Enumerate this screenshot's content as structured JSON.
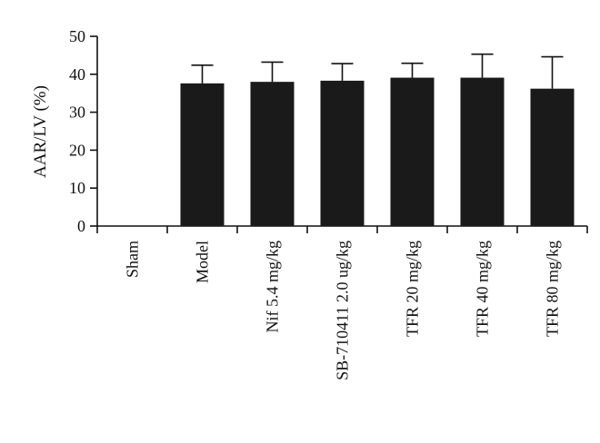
{
  "chart_data": {
    "type": "bar",
    "title": "",
    "xlabel": "",
    "ylabel": "AAR/LV (%)",
    "ylim": [
      0,
      50
    ],
    "yticks": [
      0,
      10,
      20,
      30,
      40,
      50
    ],
    "grid": false,
    "legend": "none",
    "categories": [
      "Sham",
      "Model",
      "Nif 5.4 mg/kg",
      "SB-710411 2.0 ug/kg",
      "TFR 20 mg/kg",
      "TFR 40 mg/kg",
      "TFR 80 mg/kg"
    ],
    "values": [
      0,
      37.6,
      38.0,
      38.3,
      39.1,
      39.1,
      36.2
    ],
    "error_upper": [
      0,
      4.8,
      5.2,
      4.5,
      3.8,
      6.2,
      8.4
    ],
    "bar_color": "#1a1a1a"
  }
}
